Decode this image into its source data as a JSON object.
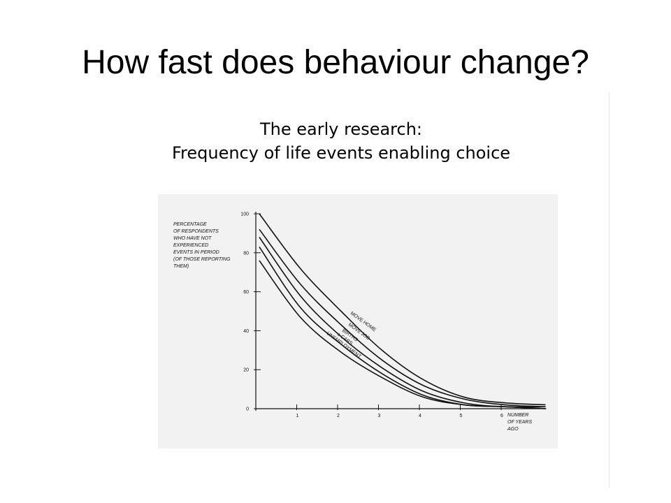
{
  "slide": {
    "title": "How fast does behaviour change?",
    "subtitle_line1": "The early research:",
    "subtitle_line2": "Frequency of life events enabling choice"
  },
  "chart_data": {
    "type": "line",
    "ylabel_lines": [
      "PERCENTAGE",
      "OF RESPONDENTS",
      "WHO HAVE NOT",
      "EXPERIENCED",
      "EVENTS IN PERIOD",
      "(OF THOSE REPORTING",
      "THEM)"
    ],
    "xlabel_lines": [
      "NUMBER",
      "OF YEARS",
      "AGO"
    ],
    "xlim": [
      0,
      7
    ],
    "ylim": [
      0,
      100
    ],
    "x_ticks": [
      "1",
      "2",
      "3",
      "4",
      "5",
      "6"
    ],
    "y_ticks": [
      "0",
      "20",
      "40",
      "60",
      "80",
      "100"
    ],
    "series": [
      {
        "name": "MOVE HOME",
        "x": [
          0,
          1,
          2,
          3,
          4,
          5,
          6,
          7
        ],
        "y": [
          100,
          72,
          50,
          30,
          15,
          6,
          3,
          2
        ]
      },
      {
        "name": "MOVE JOB",
        "x": [
          0,
          1,
          2,
          3,
          4,
          5,
          6,
          7
        ],
        "y": [
          92,
          64,
          43,
          25,
          12,
          5,
          2,
          1
        ]
      },
      {
        "name": "BIRTHS",
        "x": [
          0,
          1,
          2,
          3,
          4,
          5,
          6,
          7
        ],
        "y": [
          88,
          58,
          37,
          21,
          9,
          3,
          1,
          1
        ]
      },
      {
        "name": "± CARS",
        "x": [
          0,
          1,
          2,
          3,
          4,
          5,
          6,
          7
        ],
        "y": [
          83,
          52,
          33,
          18,
          7,
          2,
          1,
          0
        ]
      },
      {
        "name": "UNEMPLOYMENT",
        "x": [
          0,
          1,
          2,
          3,
          4,
          5,
          6,
          7
        ],
        "y": [
          76,
          47,
          29,
          16,
          6,
          2,
          1,
          0
        ]
      }
    ]
  }
}
